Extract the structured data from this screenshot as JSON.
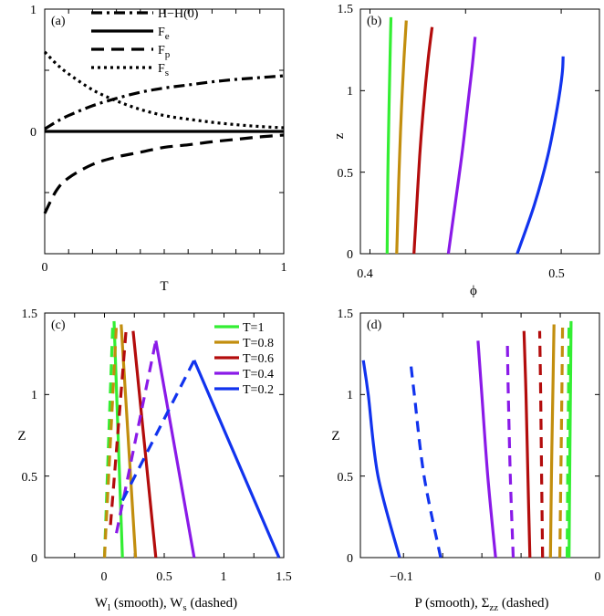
{
  "chart_data": [
    {
      "panel": "(a)",
      "type": "line",
      "xlabel": "T",
      "ylabel": "",
      "xlim": [
        0,
        1
      ],
      "ylim": [
        -1,
        1
      ],
      "xticks": [
        "0",
        "1"
      ],
      "yticks": [
        "1",
        "0"
      ],
      "series": [
        {
          "name": "H−H(0)",
          "style": "dashdot",
          "x": [
            0,
            0.05,
            0.1,
            0.2,
            0.3,
            0.4,
            0.5,
            0.6,
            0.7,
            0.8,
            0.9,
            1.0
          ],
          "y": [
            0.02,
            0.08,
            0.13,
            0.21,
            0.27,
            0.32,
            0.355,
            0.38,
            0.405,
            0.425,
            0.44,
            0.455
          ]
        },
        {
          "name": "Fe",
          "legend_main": "F",
          "legend_sub": "e",
          "style": "solid",
          "x": [
            0,
            1
          ],
          "y": [
            0,
            0
          ]
        },
        {
          "name": "Fp",
          "legend_main": "F",
          "legend_sub": "p",
          "style": "dashed",
          "x": [
            0,
            0.05,
            0.1,
            0.2,
            0.3,
            0.4,
            0.5,
            0.6,
            0.7,
            0.8,
            0.9,
            1.0
          ],
          "y": [
            -0.67,
            -0.48,
            -0.38,
            -0.27,
            -0.21,
            -0.17,
            -0.13,
            -0.11,
            -0.085,
            -0.065,
            -0.045,
            -0.03
          ]
        },
        {
          "name": "Fs",
          "legend_main": "F",
          "legend_sub": "s",
          "style": "dotted",
          "x": [
            0,
            0.05,
            0.1,
            0.2,
            0.3,
            0.4,
            0.5,
            0.6,
            0.7,
            0.8,
            0.9,
            1.0
          ],
          "y": [
            0.65,
            0.55,
            0.47,
            0.34,
            0.25,
            0.18,
            0.13,
            0.1,
            0.075,
            0.055,
            0.04,
            0.03
          ]
        }
      ]
    },
    {
      "panel": "(b)",
      "type": "line",
      "xlabel": "ϕ",
      "ylabel": "z",
      "xlim": [
        0.395,
        0.52
      ],
      "ylim": [
        0,
        1.5
      ],
      "xticks": [
        "0.4",
        "0.5"
      ],
      "yticks": [
        "0",
        "0.5",
        "1",
        "1.5"
      ],
      "series": [
        {
          "name": "T=1",
          "color": "#33ee33",
          "x": [
            0.409,
            0.4092,
            0.4095,
            0.41,
            0.4105,
            0.411
          ],
          "z": [
            0,
            0.3,
            0.6,
            0.9,
            1.2,
            1.45
          ]
        },
        {
          "name": "T=0.8",
          "color": "#c28e0e",
          "x": [
            0.414,
            0.4147,
            0.4155,
            0.4165,
            0.4178,
            0.419
          ],
          "z": [
            0,
            0.3,
            0.6,
            0.9,
            1.2,
            1.43
          ]
        },
        {
          "name": "T=0.6",
          "color": "#b30c0c",
          "x": [
            0.423,
            0.4245,
            0.426,
            0.428,
            0.4305,
            0.4325
          ],
          "z": [
            0,
            0.3,
            0.6,
            0.9,
            1.2,
            1.39
          ]
        },
        {
          "name": "T=0.4",
          "color": "#8a1ae8",
          "x": [
            0.441,
            0.4445,
            0.448,
            0.451,
            0.4535,
            0.455
          ],
          "z": [
            0,
            0.3,
            0.6,
            0.9,
            1.15,
            1.33
          ]
        },
        {
          "name": "T=0.2",
          "color": "#1133ee",
          "x": [
            0.477,
            0.486,
            0.493,
            0.498,
            0.5005,
            0.501
          ],
          "z": [
            0,
            0.3,
            0.6,
            0.9,
            1.1,
            1.21
          ]
        }
      ]
    },
    {
      "panel": "(c)",
      "type": "line",
      "xlabel_main": "W",
      "xlabel_sub": "l",
      "xlabel_tail": " (smooth), W",
      "xlabel_sub2": "s",
      "xlabel_end": " (dashed)",
      "ylabel": "Z",
      "xlim": [
        -0.5,
        1.5
      ],
      "ylim": [
        0,
        1.5
      ],
      "xticks": [
        "0",
        "0.5",
        "1",
        "1.5"
      ],
      "yticks": [
        "0",
        "0.5",
        "1",
        "1.5"
      ],
      "series": [
        {
          "name": "T=1",
          "color": "#33ee33",
          "smooth_x": [
            0.15,
            0.08
          ],
          "smooth_z": [
            0,
            1.45
          ],
          "dashed_x": [
            0.0,
            0.07
          ],
          "dashed_z": [
            0,
            1.45
          ]
        },
        {
          "name": "T=0.8",
          "color": "#c28e0e",
          "smooth_x": [
            0.26,
            0.14
          ],
          "smooth_z": [
            0,
            1.43
          ],
          "dashed_x": [
            0.0,
            0.1
          ],
          "dashed_z": [
            0,
            1.43
          ]
        },
        {
          "name": "T=0.6",
          "color": "#b30c0c",
          "smooth_x": [
            0.43,
            0.24
          ],
          "smooth_z": [
            0,
            1.39
          ],
          "dashed_x": [
            0.05,
            0.18
          ],
          "dashed_z": [
            0.2,
            1.39
          ]
        },
        {
          "name": "T=0.4",
          "color": "#8a1ae8",
          "smooth_x": [
            0.75,
            0.43
          ],
          "smooth_z": [
            0,
            1.33
          ],
          "dashed_x": [
            0.1,
            0.43
          ],
          "dashed_z": [
            0.15,
            1.33
          ]
        },
        {
          "name": "T=0.2",
          "color": "#1133ee",
          "smooth_x": [
            1.46,
            0.75
          ],
          "smooth_z": [
            0,
            1.21
          ],
          "dashed_x": [
            0.15,
            0.75
          ],
          "dashed_z": [
            0.35,
            1.21
          ]
        }
      ]
    },
    {
      "panel": "(d)",
      "type": "line",
      "xlabel_main": "P (smooth), Σ",
      "xlabel_sub": "zz",
      "xlabel_end": " (dashed)",
      "ylabel": "Z",
      "xlim": [
        -0.122,
        0
      ],
      "ylim": [
        0,
        1.5
      ],
      "xticks": [
        "−0.1",
        "0"
      ],
      "yticks": [
        "0",
        "0.5",
        "1",
        "1.5"
      ],
      "series": [
        {
          "name": "T=1",
          "color": "#33ee33",
          "smooth_x": [
            -0.0155,
            -0.0152,
            -0.0148,
            -0.0145
          ],
          "smooth_z": [
            0,
            0.5,
            1.0,
            1.45
          ],
          "dashed_x": [
            -0.0165,
            -0.0162,
            -0.0158,
            -0.0155
          ],
          "dashed_z": [
            0,
            0.5,
            1.0,
            1.45
          ]
        },
        {
          "name": "T=0.8",
          "color": "#c28e0e",
          "smooth_x": [
            -0.025,
            -0.0245,
            -0.0238,
            -0.0232
          ],
          "smooth_z": [
            0,
            0.5,
            1.0,
            1.43
          ],
          "dashed_x": [
            -0.0202,
            -0.0197,
            -0.0192,
            -0.0188
          ],
          "dashed_z": [
            0,
            0.5,
            1.0,
            1.43
          ]
        },
        {
          "name": "T=0.6",
          "color": "#b30c0c",
          "smooth_x": [
            -0.0355,
            -0.0365,
            -0.0375,
            -0.0385
          ],
          "smooth_z": [
            0,
            0.5,
            1.0,
            1.39
          ],
          "dashed_x": [
            -0.029,
            -0.0295,
            -0.03,
            -0.0305
          ],
          "dashed_z": [
            0,
            0.5,
            1.0,
            1.39
          ]
        },
        {
          "name": "T=0.4",
          "color": "#8a1ae8",
          "smooth_x": [
            -0.053,
            -0.057,
            -0.06,
            -0.062
          ],
          "smooth_z": [
            0,
            0.5,
            1.0,
            1.33
          ],
          "dashed_x": [
            -0.044,
            -0.0455,
            -0.0465,
            -0.047
          ],
          "dashed_z": [
            0,
            0.5,
            1.0,
            1.33
          ]
        },
        {
          "name": "T=0.2",
          "color": "#1133ee",
          "smooth_x": [
            -0.102,
            -0.113,
            -0.118,
            -0.1205
          ],
          "smooth_z": [
            0,
            0.5,
            1.0,
            1.21
          ],
          "dashed_x": [
            -0.081,
            -0.0895,
            -0.0945,
            -0.0965
          ],
          "dashed_z": [
            0,
            0.5,
            1.0,
            1.21
          ]
        }
      ]
    }
  ],
  "legend_c": [
    "T=1",
    "T=0.8",
    "T=0.6",
    "T=0.4",
    "T=0.2"
  ]
}
